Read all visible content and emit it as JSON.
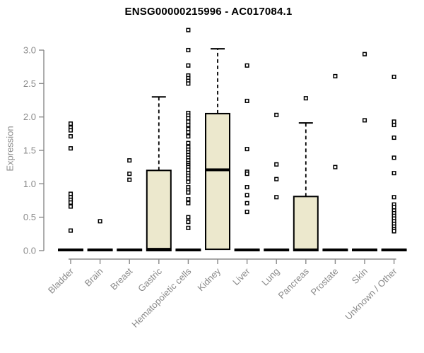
{
  "chart_data": {
    "type": "boxplot",
    "title": "ENSG00000215996 - AC017084.1",
    "ylabel": "Expression",
    "xlabel": "",
    "ylim": [
      0,
      3.35
    ],
    "yticks": [
      0,
      0.5,
      1,
      1.5,
      2,
      2.5,
      3
    ],
    "ytick_format_decimals": 1,
    "grid": false,
    "legend": "none",
    "categories": [
      "Bladder",
      "Brain",
      "Breast",
      "Gastric",
      "Hematopoietic cells",
      "Kidney",
      "Liver",
      "Lung",
      "Pancreas",
      "Prostate",
      "Skin",
      "Unknown / Other"
    ],
    "boxes": [
      {
        "category": "Bladder",
        "q1": 0,
        "median": 0.01,
        "q3": 0.02,
        "whisker_low": 0,
        "whisker_high": 0.02,
        "outliers": [
          1.9,
          1.84,
          1.8,
          1.71,
          1.53,
          0.85,
          0.8,
          0.76,
          0.72,
          0.66,
          0.3
        ]
      },
      {
        "category": "Brain",
        "q1": 0,
        "median": 0.01,
        "q3": 0.02,
        "whisker_low": 0,
        "whisker_high": 0.02,
        "outliers": [
          0.44
        ]
      },
      {
        "category": "Breast",
        "q1": 0,
        "median": 0.01,
        "q3": 0.02,
        "whisker_low": 0,
        "whisker_high": 0.02,
        "outliers": [
          1.35,
          1.15,
          1.06
        ]
      },
      {
        "category": "Gastric",
        "q1": 0,
        "median": 0.02,
        "q3": 1.2,
        "whisker_low": 0,
        "whisker_high": 2.3,
        "outliers": []
      },
      {
        "category": "Hematopoietic cells",
        "q1": 0,
        "median": 0.01,
        "q3": 0.02,
        "whisker_low": 0,
        "whisker_high": 0.02,
        "outliers": [
          3.3,
          3.0,
          2.77,
          2.62,
          2.58,
          2.54,
          2.5,
          2.06,
          2.02,
          1.98,
          1.93,
          1.88,
          1.82,
          1.77,
          1.71,
          1.61,
          1.55,
          1.51,
          1.47,
          1.43,
          1.39,
          1.35,
          1.31,
          1.28,
          1.25,
          1.21,
          1.16,
          1.12,
          1.08,
          1.03,
          0.95,
          0.9,
          0.87,
          0.77,
          0.71,
          0.5,
          0.43,
          0.34
        ]
      },
      {
        "category": "Kidney",
        "q1": 0.02,
        "median": 1.21,
        "q3": 2.05,
        "whisker_low": 0.02,
        "whisker_high": 3.02,
        "outliers": []
      },
      {
        "category": "Liver",
        "q1": 0,
        "median": 0.01,
        "q3": 0.02,
        "whisker_low": 0,
        "whisker_high": 0.02,
        "outliers": [
          2.77,
          2.24,
          1.52,
          1.18,
          1.15,
          0.95,
          0.83,
          0.71,
          0.58
        ]
      },
      {
        "category": "Lung",
        "q1": 0,
        "median": 0.01,
        "q3": 0.02,
        "whisker_low": 0,
        "whisker_high": 0.02,
        "outliers": [
          2.03,
          1.29,
          1.07,
          0.8
        ]
      },
      {
        "category": "Pancreas",
        "q1": 0,
        "median": 0.01,
        "q3": 0.81,
        "whisker_low": 0,
        "whisker_high": 1.91,
        "outliers": [
          2.28
        ]
      },
      {
        "category": "Prostate",
        "q1": 0,
        "median": 0.01,
        "q3": 0.02,
        "whisker_low": 0,
        "whisker_high": 0.02,
        "outliers": [
          2.61,
          1.25
        ]
      },
      {
        "category": "Skin",
        "q1": 0,
        "median": 0.01,
        "q3": 0.02,
        "whisker_low": 0,
        "whisker_high": 0.02,
        "outliers": [
          2.94,
          1.95
        ]
      },
      {
        "category": "Unknown / Other",
        "q1": 0,
        "median": 0.01,
        "q3": 0.02,
        "whisker_low": 0,
        "whisker_high": 0.02,
        "outliers": [
          2.6,
          1.93,
          1.88,
          1.69,
          1.39,
          1.16,
          0.8,
          0.69,
          0.65,
          0.6,
          0.56,
          0.52,
          0.48,
          0.44,
          0.4,
          0.36,
          0.32,
          0.29
        ]
      }
    ],
    "colors": {
      "box_fill": "#ece8cd",
      "box_stroke": "#000000",
      "median": "#000000",
      "whisker": "#000000",
      "outlier_stroke": "#000000",
      "outlier_fill": "#ffffff",
      "axis": "#8a8a8a",
      "tick_label": "#8a8a8a",
      "title": "#000000",
      "background": "#ffffff"
    }
  }
}
